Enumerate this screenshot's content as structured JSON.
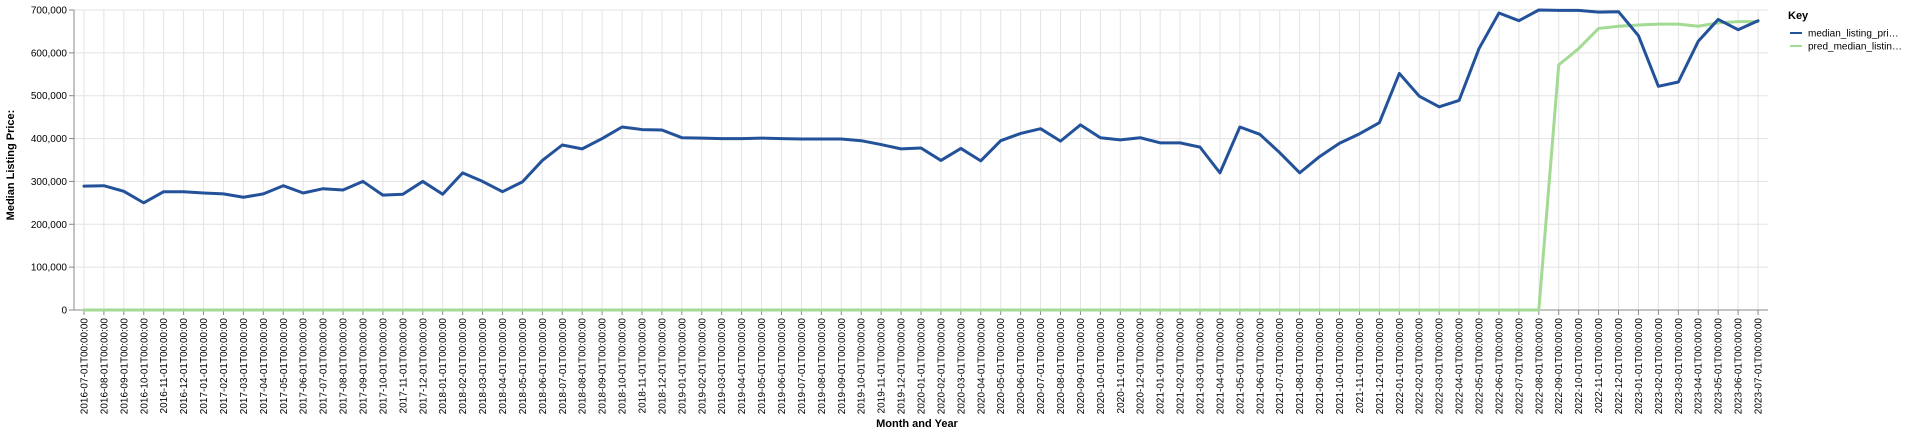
{
  "chart_data": {
    "type": "line",
    "xlabel": "Month and Year",
    "ylabel": "Median Listing Price:",
    "ylim": [
      0,
      700000
    ],
    "y_ticks": [
      0,
      100000,
      200000,
      300000,
      400000,
      500000,
      600000,
      700000
    ],
    "y_tick_labels": [
      "0",
      "100,000",
      "200,000",
      "300,000",
      "400,000",
      "500,000",
      "600,000",
      "700,000"
    ],
    "grid": true,
    "legend_position": "right",
    "legend_title": "Key",
    "x": [
      "2016-07-01T00:00:00",
      "2016-08-01T00:00:00",
      "2016-09-01T00:00:00",
      "2016-10-01T00:00:00",
      "2016-11-01T00:00:00",
      "2016-12-01T00:00:00",
      "2017-01-01T00:00:00",
      "2017-02-01T00:00:00",
      "2017-03-01T00:00:00",
      "2017-04-01T00:00:00",
      "2017-05-01T00:00:00",
      "2017-06-01T00:00:00",
      "2017-07-01T00:00:00",
      "2017-08-01T00:00:00",
      "2017-09-01T00:00:00",
      "2017-10-01T00:00:00",
      "2017-11-01T00:00:00",
      "2017-12-01T00:00:00",
      "2018-01-01T00:00:00",
      "2018-02-01T00:00:00",
      "2018-03-01T00:00:00",
      "2018-04-01T00:00:00",
      "2018-05-01T00:00:00",
      "2018-06-01T00:00:00",
      "2018-07-01T00:00:00",
      "2018-08-01T00:00:00",
      "2018-09-01T00:00:00",
      "2018-10-01T00:00:00",
      "2018-11-01T00:00:00",
      "2018-12-01T00:00:00",
      "2019-01-01T00:00:00",
      "2019-02-01T00:00:00",
      "2019-03-01T00:00:00",
      "2019-04-01T00:00:00",
      "2019-05-01T00:00:00",
      "2019-06-01T00:00:00",
      "2019-07-01T00:00:00",
      "2019-08-01T00:00:00",
      "2019-09-01T00:00:00",
      "2019-10-01T00:00:00",
      "2019-11-01T00:00:00",
      "2019-12-01T00:00:00",
      "2020-01-01T00:00:00",
      "2020-02-01T00:00:00",
      "2020-03-01T00:00:00",
      "2020-04-01T00:00:00",
      "2020-05-01T00:00:00",
      "2020-06-01T00:00:00",
      "2020-07-01T00:00:00",
      "2020-08-01T00:00:00",
      "2020-09-01T00:00:00",
      "2020-10-01T00:00:00",
      "2020-11-01T00:00:00",
      "2020-12-01T00:00:00",
      "2021-01-01T00:00:00",
      "2021-02-01T00:00:00",
      "2021-03-01T00:00:00",
      "2021-04-01T00:00:00",
      "2021-05-01T00:00:00",
      "2021-06-01T00:00:00",
      "2021-07-01T00:00:00",
      "2021-08-01T00:00:00",
      "2021-09-01T00:00:00",
      "2021-10-01T00:00:00",
      "2021-11-01T00:00:00",
      "2021-12-01T00:00:00",
      "2022-01-01T00:00:00",
      "2022-02-01T00:00:00",
      "2022-03-01T00:00:00",
      "2022-04-01T00:00:00",
      "2022-05-01T00:00:00",
      "2022-06-01T00:00:00",
      "2022-07-01T00:00:00",
      "2022-08-01T00:00:00",
      "2022-09-01T00:00:00",
      "2022-10-01T00:00:00",
      "2022-11-01T00:00:00",
      "2022-12-01T00:00:00",
      "2023-01-01T00:00:00",
      "2023-02-01T00:00:00",
      "2023-03-01T00:00:00",
      "2023-04-01T00:00:00",
      "2023-05-01T00:00:00",
      "2023-06-01T00:00:00",
      "2023-07-01T00:00:00"
    ],
    "series": [
      {
        "name": "median_listing_pri…",
        "color": "#23529a",
        "values": [
          289000,
          290000,
          277000,
          250000,
          276000,
          276000,
          273000,
          271000,
          263000,
          271000,
          290000,
          273000,
          283000,
          280000,
          300000,
          268000,
          270000,
          300000,
          270000,
          320000,
          300000,
          276000,
          299000,
          349000,
          385000,
          376000,
          400000,
          427000,
          421000,
          420000,
          402000,
          401000,
          400000,
          400000,
          401000,
          400000,
          399000,
          399000,
          399000,
          395000,
          386000,
          376000,
          378000,
          349000,
          377000,
          348000,
          395000,
          412000,
          423000,
          394000,
          432000,
          402000,
          397000,
          402000,
          390000,
          390000,
          380000,
          320000,
          427000,
          410000,
          367000,
          320000,
          358000,
          389000,
          411000,
          437000,
          552000,
          499000,
          474000,
          489000,
          610000,
          693000,
          675000,
          700000,
          699000,
          699000,
          695000,
          696000,
          640000,
          522000,
          532000,
          627000,
          678000,
          654000,
          675000
        ]
      },
      {
        "name": "pred_median_listin…",
        "color": "#a3da94",
        "values": [
          0,
          0,
          0,
          0,
          0,
          0,
          0,
          0,
          0,
          0,
          0,
          0,
          0,
          0,
          0,
          0,
          0,
          0,
          0,
          0,
          0,
          0,
          0,
          0,
          0,
          0,
          0,
          0,
          0,
          0,
          0,
          0,
          0,
          0,
          0,
          0,
          0,
          0,
          0,
          0,
          0,
          0,
          0,
          0,
          0,
          0,
          0,
          0,
          0,
          0,
          0,
          0,
          0,
          0,
          0,
          0,
          0,
          0,
          0,
          0,
          0,
          0,
          0,
          0,
          0,
          0,
          0,
          0,
          0,
          0,
          0,
          0,
          0,
          0,
          572000,
          610000,
          657000,
          662000,
          665000,
          667000,
          667000,
          662000,
          670000,
          673000,
          673000
        ]
      }
    ]
  }
}
